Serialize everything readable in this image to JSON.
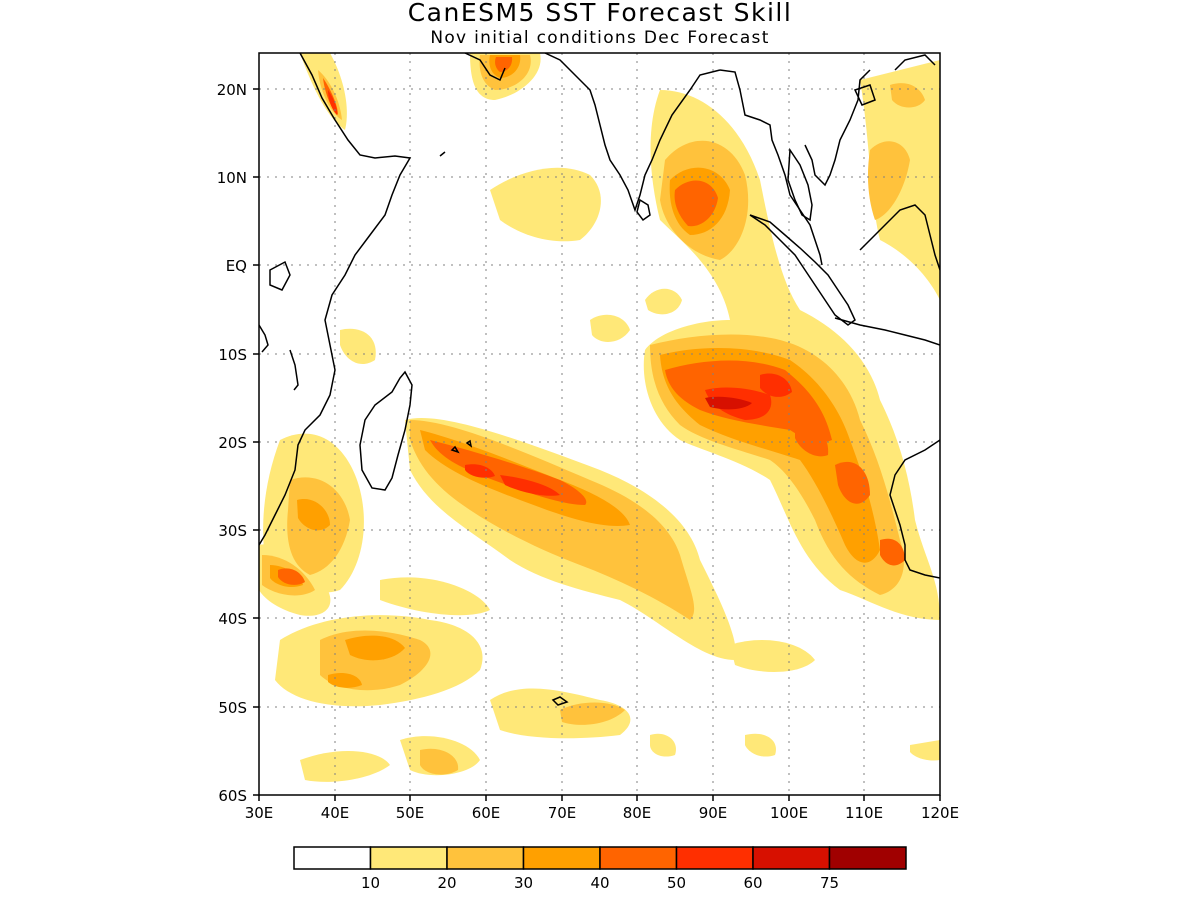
{
  "title": "CanESM5 SST Forecast Skill",
  "subtitle": "Nov initial conditions  Dec Forecast",
  "axes": {
    "lat_labels": [
      "20N",
      "10N",
      "EQ",
      "10S",
      "20S",
      "30S",
      "40S",
      "50S",
      "60S"
    ],
    "lon_labels": [
      "30E",
      "40E",
      "50E",
      "60E",
      "70E",
      "80E",
      "90E",
      "100E",
      "110E",
      "120E"
    ]
  },
  "colorbar": {
    "colors": [
      "#ffffff",
      "#ffe878",
      "#ffc23c",
      "#ffa000",
      "#ff6400",
      "#ff2f00",
      "#d71000",
      "#a00000"
    ],
    "labels": [
      "10",
      "20",
      "30",
      "40",
      "50",
      "60",
      "75"
    ]
  },
  "map_data": {
    "region": "Indian Ocean",
    "lon_range": [
      30,
      120
    ],
    "lat_range": [
      -60,
      24
    ],
    "grid": "dotted"
  }
}
